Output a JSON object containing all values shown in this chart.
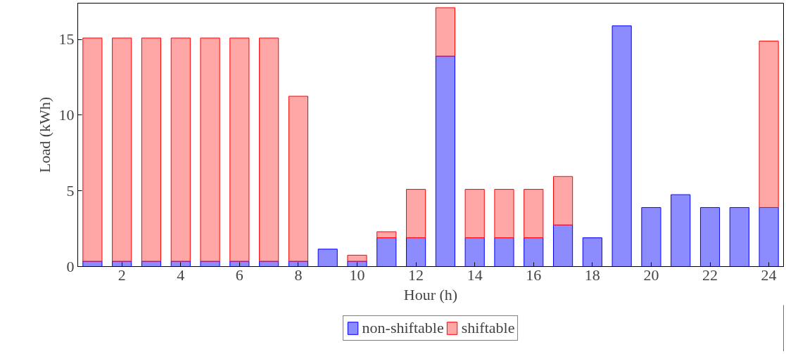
{
  "chart_data": {
    "type": "bar",
    "stacked": true,
    "xlabel": "Hour (h)",
    "ylabel": "Load (kWh)",
    "x": [
      1,
      2,
      3,
      4,
      5,
      6,
      7,
      8,
      9,
      10,
      11,
      12,
      13,
      14,
      15,
      16,
      17,
      18,
      19,
      20,
      21,
      22,
      23,
      24
    ],
    "series": [
      {
        "name": "non-shiftable",
        "color": "#8c8cff",
        "values": [
          0.35,
          0.35,
          0.35,
          0.35,
          0.35,
          0.35,
          0.35,
          0.35,
          1.15,
          0.35,
          1.9,
          1.9,
          13.9,
          1.9,
          1.9,
          1.9,
          2.75,
          1.9,
          15.9,
          3.9,
          4.75,
          3.9,
          3.9,
          3.9
        ]
      },
      {
        "name": "shiftable",
        "color": "#ffa6a6",
        "values": [
          14.75,
          14.75,
          14.75,
          14.75,
          14.75,
          14.75,
          14.75,
          10.9,
          0,
          0.4,
          0.4,
          3.2,
          3.2,
          3.2,
          3.2,
          3.2,
          3.2,
          0,
          0,
          0,
          0,
          0,
          0,
          11.0
        ]
      }
    ],
    "xlim": [
      0.5,
      24.5
    ],
    "ylim": [
      0,
      17.4
    ],
    "xticks": [
      2,
      4,
      6,
      8,
      10,
      12,
      14,
      16,
      18,
      20,
      22,
      24
    ],
    "yticks": [
      0,
      5,
      10,
      15
    ],
    "grid": false,
    "legend": "bottom"
  }
}
